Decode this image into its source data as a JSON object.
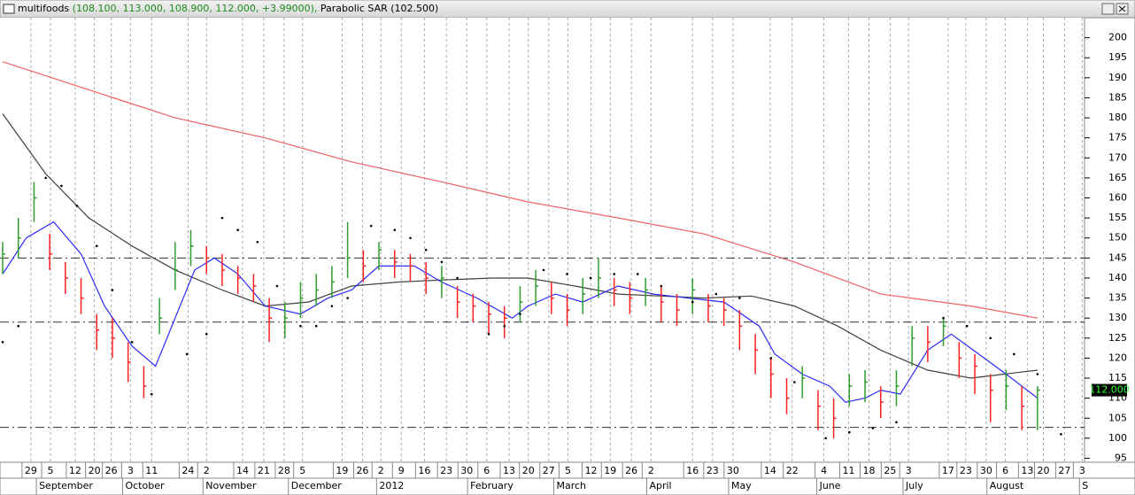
{
  "chart_data": {
    "type": "ohlc",
    "title_name": "multifoods",
    "title_values": "(108.100, 113.000, 108.900, 112.000, +3.99000),",
    "indicator_name": "Parabolic SAR",
    "indicator_value": "(102.500)",
    "xlim": [
      0,
      276
    ],
    "ylim": [
      94,
      205
    ],
    "yticks": [
      95,
      100,
      105,
      110,
      115,
      120,
      125,
      130,
      135,
      140,
      145,
      150,
      155,
      160,
      165,
      170,
      175,
      180,
      185,
      190,
      195,
      200
    ],
    "xticks": [
      {
        "value": 7.2,
        "label": "29"
      },
      {
        "value": 12.2,
        "label": "5"
      },
      {
        "value": 18.5,
        "label": "12"
      },
      {
        "value": 23.4,
        "label": "20"
      },
      {
        "value": 27.7,
        "label": "26"
      },
      {
        "value": 32.6,
        "label": "3"
      },
      {
        "value": 38.0,
        "label": "11"
      },
      {
        "value": 47.3,
        "label": "24"
      },
      {
        "value": 52.0,
        "label": "2"
      },
      {
        "value": 61.2,
        "label": "14"
      },
      {
        "value": 66.6,
        "label": "21"
      },
      {
        "value": 71.8,
        "label": "28"
      },
      {
        "value": 76.5,
        "label": "5"
      },
      {
        "value": 86.6,
        "label": "19"
      },
      {
        "value": 91.8,
        "label": "26"
      },
      {
        "value": 96.5,
        "label": "2"
      },
      {
        "value": 101.7,
        "label": "9"
      },
      {
        "value": 107.6,
        "label": "16"
      },
      {
        "value": 113.2,
        "label": "23"
      },
      {
        "value": 118.4,
        "label": "30"
      },
      {
        "value": 123.5,
        "label": "6"
      },
      {
        "value": 129.2,
        "label": "13"
      },
      {
        "value": 134.1,
        "label": "20"
      },
      {
        "value": 139.3,
        "label": "27"
      },
      {
        "value": 144.2,
        "label": "5"
      },
      {
        "value": 150.1,
        "label": "12"
      },
      {
        "value": 155.0,
        "label": "19"
      },
      {
        "value": 160.4,
        "label": "26"
      },
      {
        "value": 165.4,
        "label": "2"
      },
      {
        "value": 176.0,
        "label": "16"
      },
      {
        "value": 181.1,
        "label": "23"
      },
      {
        "value": 186.3,
        "label": "30"
      },
      {
        "value": 195.8,
        "label": "14"
      },
      {
        "value": 201.4,
        "label": "22"
      },
      {
        "value": 209.5,
        "label": "4"
      },
      {
        "value": 215.8,
        "label": "11"
      },
      {
        "value": 221.0,
        "label": "18"
      },
      {
        "value": 226.4,
        "label": "25"
      },
      {
        "value": 231.1,
        "label": "3"
      },
      {
        "value": 241.2,
        "label": "17"
      },
      {
        "value": 245.7,
        "label": "23"
      },
      {
        "value": 250.9,
        "label": "30"
      },
      {
        "value": 255.8,
        "label": "6"
      },
      {
        "value": 261.4,
        "label": "13"
      },
      {
        "value": 265.5,
        "label": "20"
      },
      {
        "value": 270.9,
        "label": "27"
      },
      {
        "value": 275.4,
        "label": "3"
      }
    ],
    "month_ticks": [
      {
        "value": 8.6,
        "label": "September"
      },
      {
        "value": 30.6,
        "label": "October"
      },
      {
        "value": 51.1,
        "label": "November"
      },
      {
        "value": 72.9,
        "label": "December"
      },
      {
        "value": 95.4,
        "label": "2012"
      },
      {
        "value": 118.6,
        "label": "February"
      },
      {
        "value": 140.6,
        "label": "March"
      },
      {
        "value": 164.3,
        "label": "April"
      },
      {
        "value": 185.2,
        "label": "May"
      },
      {
        "value": 207.7,
        "label": "June"
      },
      {
        "value": 229.7,
        "label": "July"
      },
      {
        "value": 251.1,
        "label": "August"
      },
      {
        "value": 274.7,
        "label": "S"
      }
    ],
    "levels": [
      145,
      129,
      102.7
    ],
    "last_price": {
      "value": 112,
      "label": "112.000"
    },
    "up_color": "#2e9e2e",
    "down_color": "#ff2020",
    "bars": {
      "x": [
        0,
        4,
        8,
        12,
        16,
        20,
        24,
        28,
        32,
        36,
        40,
        44,
        48,
        52,
        56,
        60,
        64,
        68,
        72,
        76,
        80,
        84,
        88,
        92,
        96,
        100,
        104,
        108,
        112,
        116,
        120,
        124,
        128,
        132,
        136,
        140,
        144,
        148,
        152,
        156,
        160,
        164,
        168,
        172,
        176,
        180,
        184,
        188,
        192,
        196,
        200,
        204,
        208,
        212,
        216,
        220,
        224,
        228,
        232,
        236,
        240,
        244,
        248,
        252,
        256,
        260,
        264
      ],
      "high": [
        149,
        155,
        164,
        151,
        144,
        140,
        131,
        130,
        124,
        118,
        135,
        149,
        152,
        148,
        146,
        143,
        141,
        135,
        134,
        139,
        141,
        143,
        154,
        147,
        149,
        147,
        146,
        144,
        143,
        138,
        136,
        134,
        133,
        138,
        142,
        139,
        136,
        140,
        145,
        140,
        139,
        140,
        138,
        136,
        140,
        136,
        135,
        132,
        126,
        120,
        115,
        118,
        112,
        110,
        116,
        117,
        113,
        117,
        128,
        128,
        130,
        124,
        121,
        116,
        117,
        113,
        113
      ],
      "low": [
        141,
        145,
        154,
        142,
        136,
        131,
        122,
        120,
        114,
        110,
        126,
        137,
        143,
        141,
        138,
        136,
        134,
        124,
        125,
        130,
        133,
        135,
        140,
        139,
        142,
        140,
        139,
        136,
        135,
        130,
        129,
        126,
        125,
        129,
        133,
        131,
        128,
        131,
        135,
        133,
        131,
        133,
        129,
        128,
        131,
        129,
        128,
        122,
        116,
        110,
        106,
        110,
        102,
        100,
        108,
        109,
        105,
        108,
        118,
        119,
        123,
        115,
        111,
        104,
        107,
        102,
        102
      ],
      "close": [
        146,
        150,
        160,
        146,
        140,
        135,
        127,
        125,
        119,
        113,
        130,
        142,
        148,
        145,
        142,
        140,
        138,
        130,
        130,
        135,
        137,
        139,
        145,
        143,
        147,
        144,
        143,
        140,
        140,
        134,
        133,
        131,
        130,
        134,
        138,
        135,
        132,
        136,
        140,
        137,
        135,
        137,
        134,
        132,
        137,
        133,
        132,
        128,
        122,
        116,
        110,
        115,
        108,
        105,
        113,
        114,
        109,
        113,
        125,
        124,
        128,
        120,
        118,
        112,
        113,
        108,
        112
      ]
    },
    "lines": [
      {
        "name": "MA long",
        "color": "#f06060",
        "x": [
          0,
          22,
          44,
          67,
          89,
          112,
          134,
          157,
          179,
          202,
          224,
          247,
          264
        ],
        "values": [
          194,
          187,
          180,
          175,
          169,
          164,
          159,
          155,
          151,
          144,
          136,
          133,
          130
        ]
      },
      {
        "name": "MA mid",
        "color": "#404040",
        "x": [
          0,
          11,
          22,
          33,
          44,
          56,
          67,
          78,
          89,
          101,
          112,
          125,
          134,
          146,
          157,
          168,
          179,
          191,
          202,
          213,
          224,
          236,
          247,
          264
        ],
        "values": [
          181,
          166,
          155,
          148,
          142,
          137,
          133,
          134,
          138,
          139,
          139.5,
          140,
          140,
          138,
          136,
          135.5,
          135,
          135.5,
          133,
          128,
          122,
          117,
          115,
          117
        ]
      },
      {
        "name": "MA short",
        "color": "#2a2aff",
        "x": [
          0,
          6,
          13,
          20,
          26,
          33,
          39,
          44,
          49,
          54,
          60,
          67,
          76,
          83,
          89,
          96,
          105,
          112,
          121,
          130,
          134,
          141,
          148,
          157,
          166,
          175,
          184,
          193,
          197,
          204,
          211,
          215,
          220,
          224,
          229,
          236,
          242,
          249,
          256,
          264
        ],
        "values": [
          141,
          150,
          154,
          146,
          133,
          123,
          118,
          130,
          142,
          145,
          141,
          133,
          131,
          135,
          137,
          143,
          143,
          139,
          135,
          130,
          133,
          136,
          134,
          138,
          136,
          135,
          134,
          128,
          121,
          116,
          113,
          109,
          110,
          112,
          111,
          122,
          126,
          121,
          116,
          110
        ]
      }
    ],
    "sar": {
      "x": [
        0,
        4,
        11,
        15,
        19,
        24,
        28,
        33,
        38,
        47,
        52,
        56,
        60,
        65,
        70,
        76,
        80,
        84,
        88,
        94,
        100,
        104,
        108,
        112,
        116,
        124,
        128,
        132,
        138,
        144,
        150,
        156,
        162,
        168,
        176,
        182,
        188,
        196,
        202,
        210,
        216,
        222,
        228,
        240,
        246,
        252,
        258,
        264,
        270
      ],
      "values": [
        124,
        128,
        165,
        163,
        158,
        148,
        137,
        124,
        111,
        121,
        126,
        155,
        152,
        149,
        138,
        128,
        128,
        133,
        135,
        153,
        152,
        150,
        147,
        144,
        140,
        126,
        128,
        131,
        142,
        141,
        140,
        141,
        141,
        138,
        134,
        136,
        135,
        120,
        114,
        100,
        101.5,
        102.5,
        104,
        130,
        128,
        125,
        121,
        116,
        101
      ]
    }
  }
}
